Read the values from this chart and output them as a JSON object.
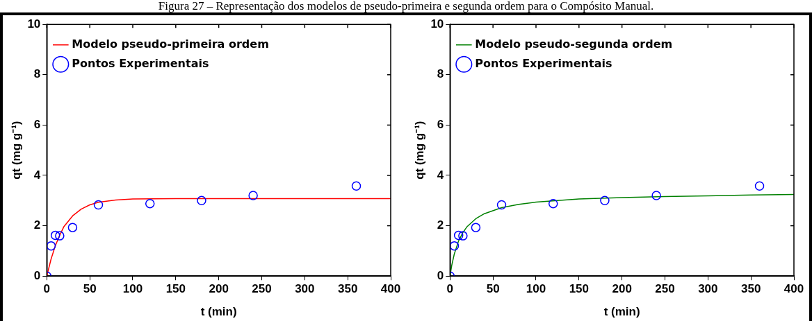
{
  "chart_data": [
    {
      "type": "line",
      "title": "Figura 27 – Representação dos modelos de pseudo-primeira e segunda ordem para o Compósito Manual.",
      "xlabel": "t (min)",
      "ylabel": "qt (mg g⁻¹)",
      "xlim": [
        0,
        400
      ],
      "xticks": [
        0,
        50,
        100,
        150,
        200,
        250,
        300,
        350,
        400
      ],
      "ylim": [
        0,
        10
      ],
      "yticks": [
        0,
        2,
        4,
        6,
        8,
        10
      ],
      "grid": false,
      "legend": "top left",
      "series": [
        {
          "name": "Modelo pseudo-primeira ordem",
          "type": "line",
          "color": "#ff0000",
          "x": [
            0,
            5,
            10,
            15,
            20,
            30,
            40,
            50,
            60,
            80,
            100,
            150,
            200,
            300,
            400
          ],
          "values": [
            0,
            0.68,
            1.21,
            1.62,
            1.97,
            2.39,
            2.66,
            2.83,
            2.93,
            3.02,
            3.06,
            3.08,
            3.08,
            3.08,
            3.08
          ]
        },
        {
          "name": "Pontos Experimentais",
          "type": "scatter",
          "marker": "circle",
          "color": "#0000ff",
          "x": [
            0,
            5,
            10,
            15,
            30,
            60,
            120,
            180,
            240,
            360
          ],
          "values": [
            0,
            1.2,
            1.62,
            1.6,
            1.93,
            2.83,
            2.88,
            3.0,
            3.2,
            3.58
          ]
        }
      ]
    },
    {
      "type": "line",
      "xlabel": "t (min)",
      "ylabel": "qt (mg g⁻¹)",
      "xlim": [
        0,
        400
      ],
      "xticks": [
        0,
        50,
        100,
        150,
        200,
        250,
        300,
        350,
        400
      ],
      "ylim": [
        0,
        10
      ],
      "yticks": [
        0,
        2,
        4,
        6,
        8,
        10
      ],
      "grid": false,
      "legend": "top left",
      "series": [
        {
          "name": "Modelo pseudo-segunda ordem",
          "type": "line",
          "color": "#008000",
          "x": [
            0,
            2,
            5,
            10,
            15,
            20,
            30,
            40,
            60,
            80,
            100,
            150,
            200,
            250,
            300,
            350,
            400
          ],
          "values": [
            0,
            0.42,
            0.88,
            1.4,
            1.73,
            1.97,
            2.28,
            2.48,
            2.72,
            2.85,
            2.94,
            3.06,
            3.12,
            3.16,
            3.19,
            3.22,
            3.24
          ]
        },
        {
          "name": "Pontos Experimentais",
          "type": "scatter",
          "marker": "circle",
          "color": "#0000ff",
          "x": [
            0,
            5,
            10,
            15,
            30,
            60,
            120,
            180,
            240,
            360
          ],
          "values": [
            0,
            1.2,
            1.62,
            1.6,
            1.93,
            2.83,
            2.88,
            3.0,
            3.2,
            3.58
          ]
        }
      ]
    }
  ]
}
